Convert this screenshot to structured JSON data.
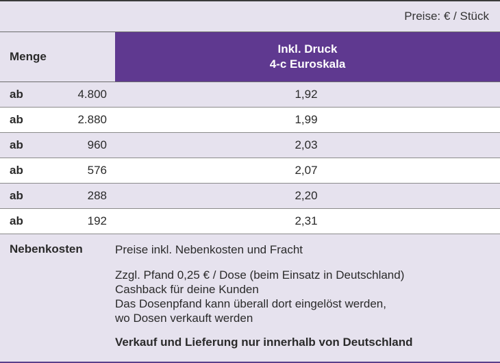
{
  "price_unit": "Preise: € / Stück",
  "header": {
    "quantity_label": "Menge",
    "price_col_line1": "Inkl. Druck",
    "price_col_line2": "4-c Euroskala"
  },
  "rows": [
    {
      "prefix": "ab",
      "quantity": "4.800",
      "price": "1,92"
    },
    {
      "prefix": "ab",
      "quantity": "2.880",
      "price": "1,99"
    },
    {
      "prefix": "ab",
      "quantity": "960",
      "price": "2,03"
    },
    {
      "prefix": "ab",
      "quantity": "576",
      "price": "2,07"
    },
    {
      "prefix": "ab",
      "quantity": "288",
      "price": "2,20"
    },
    {
      "prefix": "ab",
      "quantity": "192",
      "price": "2,31"
    }
  ],
  "notes": {
    "label": "Nebenkosten",
    "line1": "Preise inkl. Nebenkosten und Fracht",
    "line2": "Zzgl. Pfand 0,25 € / Dose (beim Einsatz in Deutschland)",
    "line3": "Cashback für deine Kunden",
    "line4": "Das Dosenpfand kann überall dort eingelöst werden,",
    "line5": "wo Dosen verkauft werden",
    "final": "Verkauf und Lieferung nur innerhalb von Deutschland"
  },
  "colors": {
    "background": "#e6e2ee",
    "header_accent": "#5f3990",
    "row_alt": "#ffffff"
  }
}
